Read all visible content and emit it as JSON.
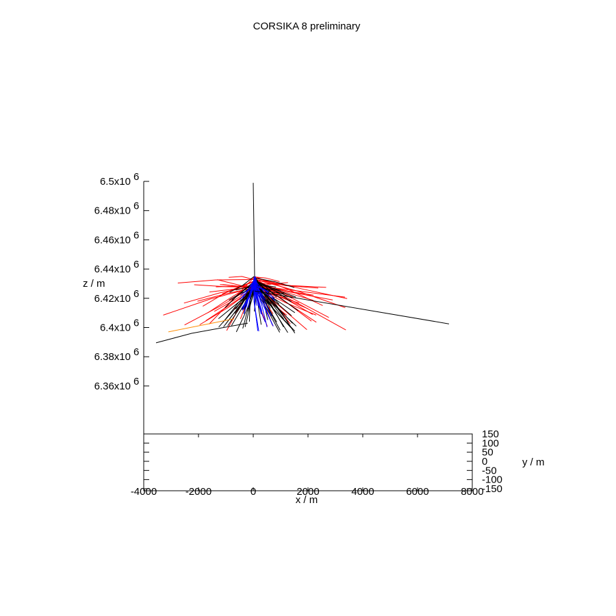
{
  "chart_data": {
    "type": "line",
    "title": "CORSIKA 8 preliminary",
    "view": "3d-projection",
    "colors": {
      "primary": "#000000",
      "electromagnetic": "#ff0000",
      "muon": "#0000ff",
      "other": "#ff8c00"
    },
    "x_axis": {
      "label": "x / m",
      "range": [
        -4000,
        8000
      ],
      "ticks": [
        -4000,
        -2000,
        0,
        2000,
        4000,
        6000,
        8000
      ],
      "tick_labels": [
        "-4000",
        "-2000",
        "0",
        "2000",
        "4000",
        "6000",
        "8000"
      ]
    },
    "y_axis": {
      "label": "y / m",
      "range": [
        -150,
        150
      ],
      "ticks": [
        150,
        100,
        50,
        0,
        -50,
        -100,
        -150
      ],
      "tick_labels": [
        "150",
        "100",
        "50",
        "0",
        "-50",
        "-100",
        "-150"
      ]
    },
    "z_axis": {
      "label": "z / m",
      "range": [
        6340000,
        6500000
      ],
      "ticks": [
        6500000,
        6480000,
        6460000,
        6440000,
        6420000,
        6400000,
        6380000,
        6360000
      ],
      "tick_labels": [
        {
          "mantissa": "6.5x10",
          "exponent": "6"
        },
        {
          "mantissa": "6.48x10",
          "exponent": "6"
        },
        {
          "mantissa": "6.46x10",
          "exponent": "6"
        },
        {
          "mantissa": "6.44x10",
          "exponent": "6"
        },
        {
          "mantissa": "6.42x10",
          "exponent": "6"
        },
        {
          "mantissa": "6.4x10",
          "exponent": "6"
        },
        {
          "mantissa": "6.38x10",
          "exponent": "6"
        },
        {
          "mantissa": "6.36x10",
          "exponent": "6"
        }
      ]
    },
    "first_interaction": {
      "x": 50,
      "z": 6435000
    },
    "primary_track": [
      [
        0,
        6499000
      ],
      [
        50,
        6435000
      ]
    ],
    "long_tracks": [
      {
        "color": "primary",
        "points": [
          [
            50,
            6425000
          ],
          [
            7150,
            6402500
          ]
        ]
      },
      {
        "color": "primary",
        "points": [
          [
            -200,
            6403000
          ],
          [
            -2250,
            6396000
          ],
          [
            -3550,
            6389500
          ]
        ]
      },
      {
        "color": "other",
        "points": [
          [
            -700,
            6406000
          ],
          [
            -3100,
            6397000
          ]
        ]
      }
    ],
    "fan_tracks": [
      {
        "color": "electromagnetic",
        "count": 55,
        "x_range": [
          -3350,
          3550
        ],
        "z_range": [
          6391000,
          6436000
        ]
      },
      {
        "color": "primary",
        "count": 60,
        "x_range": [
          -1300,
          1750
        ],
        "z_range": [
          6390000,
          6432000
        ]
      },
      {
        "color": "muon",
        "count": 32,
        "x_range": [
          -550,
          900
        ],
        "z_range": [
          6391000,
          6428000
        ]
      }
    ]
  }
}
